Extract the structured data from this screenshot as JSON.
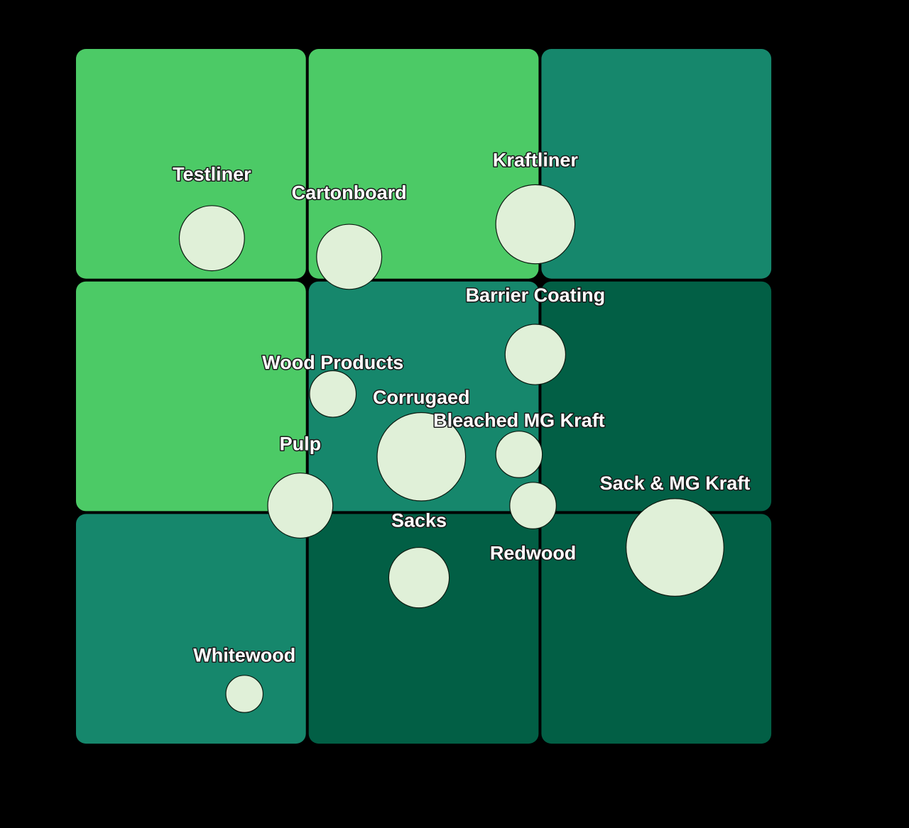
{
  "colors": {
    "background": "#000000",
    "light_green": "#4cca66",
    "teal": "#16876c",
    "dark_green": "#025f45",
    "bubble_fill": "#e0f0d8",
    "label": "#ffffff"
  },
  "chart_data": {
    "type": "scatter",
    "subtype": "bubble-on-3x3-matrix",
    "title": "",
    "xlabel": "",
    "ylabel": "",
    "xlim": [
      0,
      3
    ],
    "ylim": [
      0,
      3
    ],
    "grid_cells": [
      {
        "row": 0,
        "col": 0,
        "color": "light_green"
      },
      {
        "row": 0,
        "col": 1,
        "color": "light_green"
      },
      {
        "row": 0,
        "col": 2,
        "color": "teal"
      },
      {
        "row": 1,
        "col": 0,
        "color": "light_green"
      },
      {
        "row": 1,
        "col": 1,
        "color": "teal"
      },
      {
        "row": 1,
        "col": 2,
        "color": "dark_green"
      },
      {
        "row": 2,
        "col": 0,
        "color": "teal"
      },
      {
        "row": 2,
        "col": 1,
        "color": "dark_green"
      },
      {
        "row": 2,
        "col": 2,
        "color": "dark_green"
      }
    ],
    "points": [
      {
        "label": "Testliner",
        "x": 0.59,
        "y": 2.18,
        "size": 0.28
      },
      {
        "label": "Cartonboard",
        "x": 1.18,
        "y": 2.1,
        "size": 0.28
      },
      {
        "label": "Kraftliner",
        "x": 1.98,
        "y": 2.24,
        "size": 0.34
      },
      {
        "label": "Barrier Coating",
        "x": 1.98,
        "y": 1.68,
        "size": 0.26
      },
      {
        "label": "Wood Products",
        "x": 1.11,
        "y": 1.51,
        "size": 0.2
      },
      {
        "label": "Corrugaed",
        "x": 1.49,
        "y": 1.24,
        "size": 0.38
      },
      {
        "label": "Bleached MG Kraft",
        "x": 1.91,
        "y": 1.25,
        "size": 0.2
      },
      {
        "label": "Pulp",
        "x": 0.97,
        "y": 1.03,
        "size": 0.28
      },
      {
        "label": "Redwood",
        "x": 1.97,
        "y": 1.03,
        "size": 0.2
      },
      {
        "label": "Sack & MG Kraft",
        "x": 2.58,
        "y": 0.85,
        "size": 0.42
      },
      {
        "label": "Sacks",
        "x": 1.48,
        "y": 0.72,
        "size": 0.26
      },
      {
        "label": "Whitewood",
        "x": 0.73,
        "y": 0.22,
        "size": 0.16
      }
    ],
    "label_offsets": [
      0.27,
      0.27,
      0.27,
      0.25,
      0.13,
      0.25,
      0.14,
      0.26,
      -0.21,
      0.27,
      0.24,
      0.16
    ],
    "grid": false,
    "legend": "none"
  }
}
